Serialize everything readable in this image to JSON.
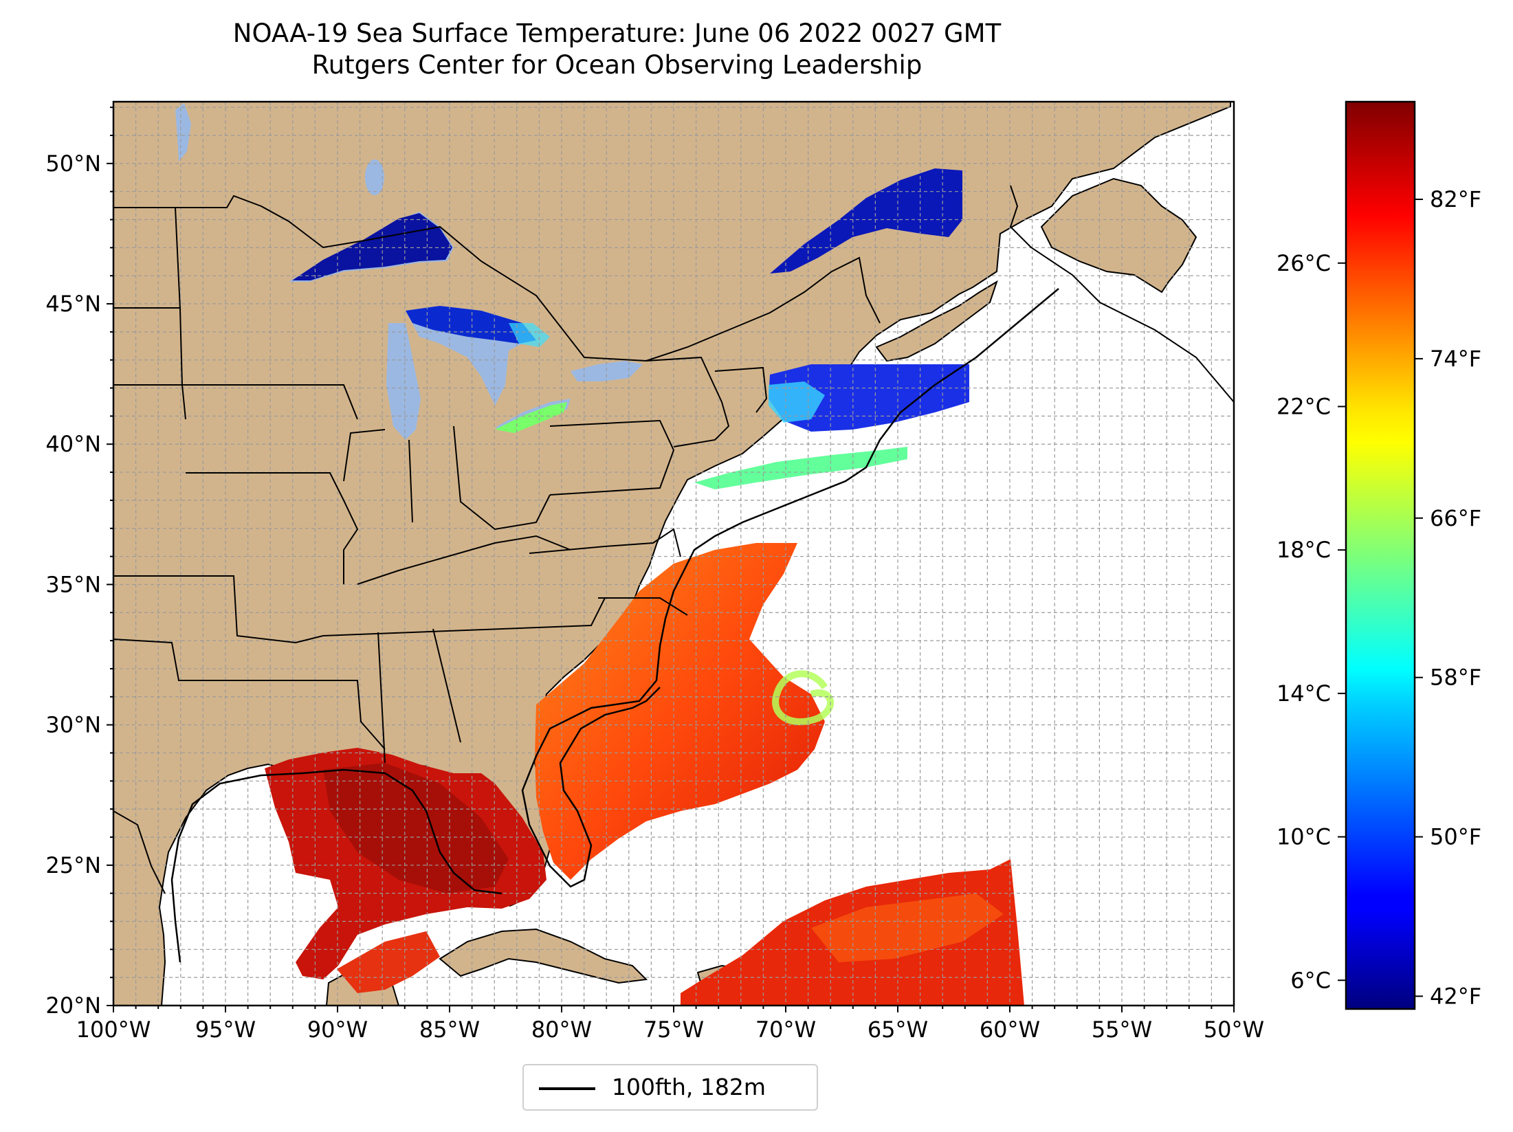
{
  "title": {
    "line1": "NOAA-19 Sea Surface Temperature: June 06 2022 0027 GMT",
    "line2": "Rutgers Center for Ocean Observing Leadership"
  },
  "map": {
    "lon_range": [
      -100,
      -50
    ],
    "lat_range": [
      20,
      52.2
    ],
    "x_ticks": [
      "100°W",
      "95°W",
      "90°W",
      "85°W",
      "80°W",
      "75°W",
      "70°W",
      "65°W",
      "60°W",
      "55°W",
      "50°W"
    ],
    "y_ticks": [
      "20°N",
      "25°N",
      "30°N",
      "35°N",
      "40°N",
      "45°N",
      "50°N"
    ],
    "grid": true,
    "land_color": "#d2b48c",
    "lake_color": "#9bb8e2",
    "ocean_color": "#ffffff"
  },
  "colorbar": {
    "colormap": "jet",
    "range_c": [
      5.2,
      30.5
    ],
    "celsius_ticks": [
      "6°C",
      "10°C",
      "14°C",
      "18°C",
      "22°C",
      "26°C"
    ],
    "fahrenheit_ticks": [
      "42°F",
      "50°F",
      "58°F",
      "66°F",
      "74°F",
      "82°F"
    ]
  },
  "legend": {
    "label": "100fth, 182m",
    "position": "bottom-center"
  }
}
